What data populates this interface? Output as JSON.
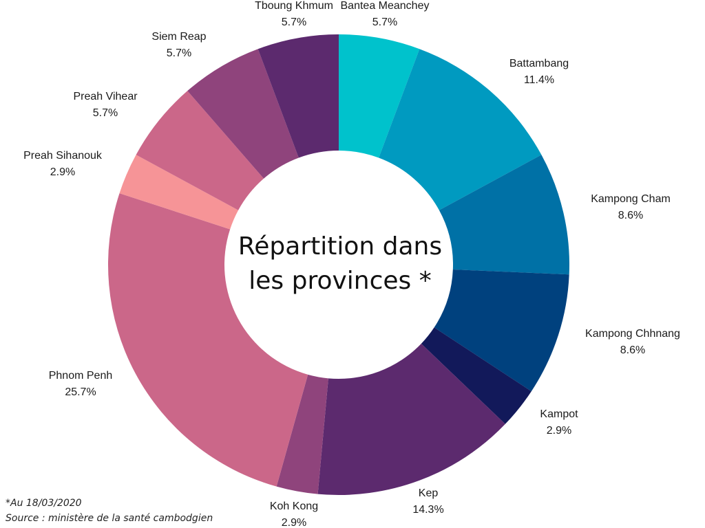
{
  "chart_data": {
    "type": "pie",
    "title": "Répartition dans les provinces *",
    "title_lines": [
      "Répartition dans",
      "les provinces *"
    ],
    "unit": "%",
    "slices": [
      {
        "label": "Bantea Meanchey",
        "value": 5.7,
        "value_label": "5.7%",
        "color": "#00c2cc"
      },
      {
        "label": "Battambang",
        "value": 11.4,
        "value_label": "11.4%",
        "color": "#009ac0"
      },
      {
        "label": "Kampong Cham",
        "value": 8.6,
        "value_label": "8.6%",
        "color": "#0071a6"
      },
      {
        "label": "Kampong Chhnang",
        "value": 8.6,
        "value_label": "8.6%",
        "color": "#00417e"
      },
      {
        "label": "Kampot",
        "value": 2.9,
        "value_label": "2.9%",
        "color": "#12195a"
      },
      {
        "label": "Kep",
        "value": 14.3,
        "value_label": "14.3%",
        "color": "#5c2a6e"
      },
      {
        "label": "Koh Kong",
        "value": 2.9,
        "value_label": "2.9%",
        "color": "#8f447c"
      },
      {
        "label": "Phnom Penh",
        "value": 25.7,
        "value_label": "25.7%",
        "color": "#cb6789"
      },
      {
        "label": "Preah Sihanouk",
        "value": 2.9,
        "value_label": "2.9%",
        "color": "#f69497"
      },
      {
        "label": "Preah Vihear",
        "value": 5.7,
        "value_label": "5.7%",
        "color": "#cb6789"
      },
      {
        "label": "Siem Reap",
        "value": 5.7,
        "value_label": "5.7%",
        "color": "#8f447c"
      },
      {
        "label": "Tboung Khmum",
        "value": 5.7,
        "value_label": "5.7%",
        "color": "#5c2a6e"
      }
    ]
  },
  "footnote": {
    "date_note": "*Au 18/03/2020",
    "source": "Source : ministère de la santé cambodgien"
  }
}
